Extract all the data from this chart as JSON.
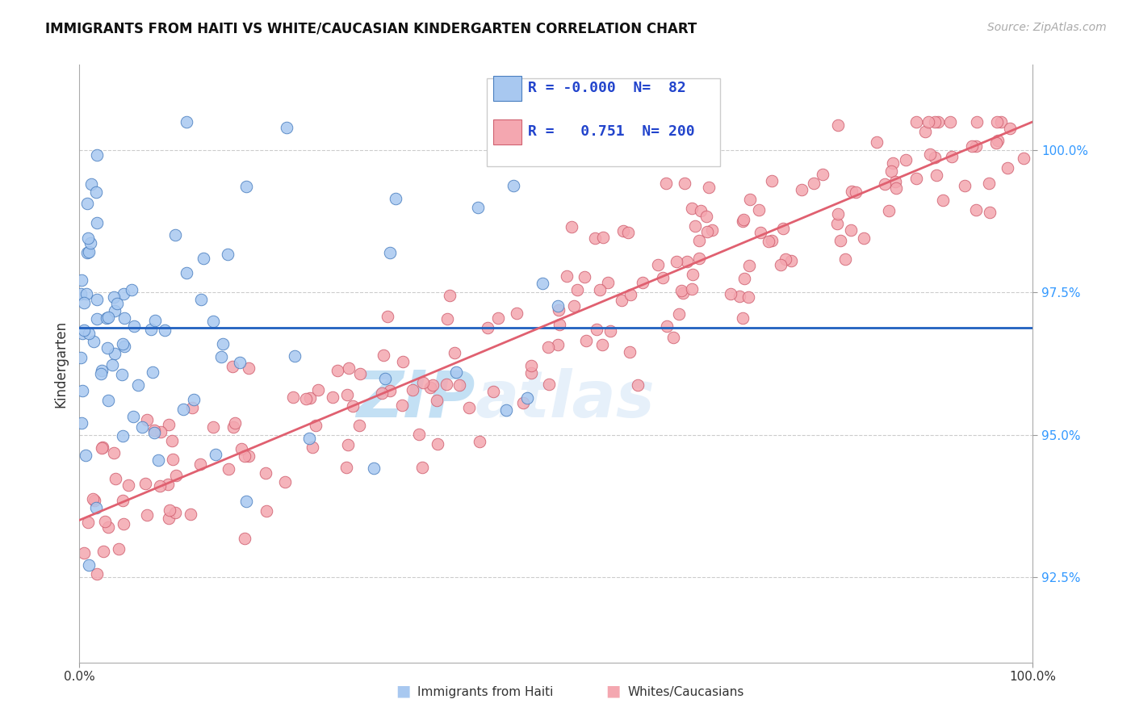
{
  "title": "IMMIGRANTS FROM HAITI VS WHITE/CAUCASIAN KINDERGARTEN CORRELATION CHART",
  "source": "Source: ZipAtlas.com",
  "ylabel": "Kindergarten",
  "xlim": [
    0.0,
    100.0
  ],
  "ylim": [
    91.0,
    101.5
  ],
  "yticks": [
    92.5,
    95.0,
    97.5,
    100.0
  ],
  "ytick_labels": [
    "92.5%",
    "95.0%",
    "97.5%",
    "100.0%"
  ],
  "blue_R": "-0.000",
  "blue_N": 82,
  "pink_R": "0.751",
  "pink_N": 200,
  "blue_color": "#a8c8f0",
  "pink_color": "#f4a7b0",
  "blue_edge_color": "#4a7fc0",
  "pink_edge_color": "#d06070",
  "blue_line_color": "#2060c0",
  "pink_line_color": "#e06070",
  "legend_label_blue": "Immigrants from Haiti",
  "legend_label_pink": "Whites/Caucasians",
  "watermark_zip": "ZIP",
  "watermark_atlas": "atlas",
  "background_color": "#ffffff",
  "seed": 42,
  "pink_slope": 0.07,
  "pink_intercept": 93.5
}
